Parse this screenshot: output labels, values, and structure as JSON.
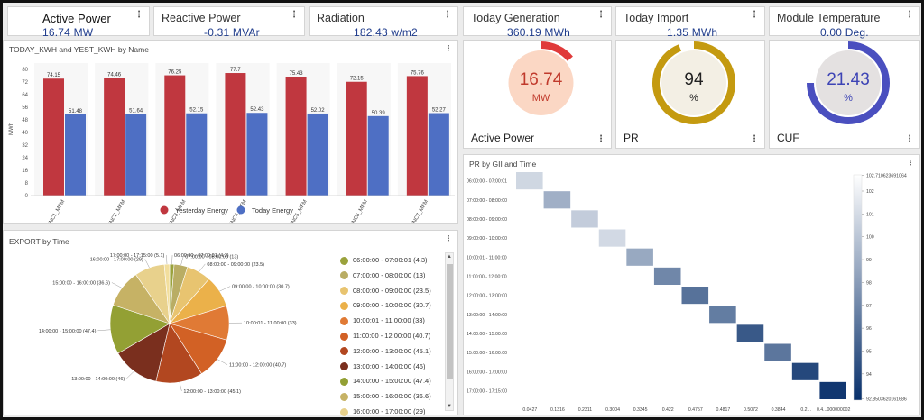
{
  "kpis": [
    {
      "title": "Active Power",
      "value": "16.74 MW",
      "selected": true
    },
    {
      "title": "Reactive Power",
      "value": "-0.31 MVAr"
    },
    {
      "title": "Radiation",
      "value": "182.43 w/m2"
    },
    {
      "title": "Today Generation",
      "value": "360.19 MWh"
    },
    {
      "title": "Today Import",
      "value": "1.35 MWh"
    },
    {
      "title": "Module Temperature",
      "value": "0.00 Deg."
    }
  ],
  "gauges": [
    {
      "title": "Active Power",
      "value": "16.74",
      "unit": "MW",
      "fraction": 0.14,
      "track_color": "#fbd7c4",
      "arc_color": "#e03a3a",
      "text_color": "#c0392b"
    },
    {
      "title": "PR",
      "value": "94",
      "unit": "%",
      "fraction": 0.94,
      "track_color": "#f3efe4",
      "arc_color": "#c49a10",
      "text_color": "#222222"
    },
    {
      "title": "CUF",
      "value": "21.43",
      "unit": "%",
      "fraction": 0.75,
      "track_color": "#e4e1e1",
      "arc_color": "#4a4fbf",
      "text_color": "#3d44b5"
    }
  ],
  "bar_card": {
    "title": "TODAY_KWH and YEST_KWH by Name"
  },
  "pie_card": {
    "title": "EXPORT by Time"
  },
  "heat_card": {
    "title": "PR by GII and Time"
  },
  "charts": {
    "bar": {
      "type": "bar",
      "categories": [
        "INC1_MFM",
        "INC2_MFM",
        "INC3_MFM",
        "INC4_MFM",
        "INC5_MFM",
        "INC6_MFM",
        "INC7_MFM"
      ],
      "series": [
        {
          "name": "Yesterday Energy",
          "color": "#c0373f",
          "values": [
            74.15,
            74.46,
            76.25,
            77.7,
            75.43,
            72.15,
            75.76
          ]
        },
        {
          "name": "Today Energy",
          "color": "#4e6fc4",
          "values": [
            51.48,
            51.64,
            52.15,
            52.43,
            52.02,
            50.39,
            52.27
          ]
        }
      ],
      "ylabel": "MWh",
      "yticks": [
        0,
        8,
        16,
        24,
        32,
        40,
        48,
        56,
        64,
        72,
        80
      ],
      "ylim": [
        0,
        84
      ],
      "legend_position": "bottom"
    },
    "pie": {
      "type": "pie",
      "slices": [
        {
          "label": "06:00:00 - 07:00:01",
          "value": 4.3,
          "color": "#9aa23c"
        },
        {
          "label": "07:00:00 - 08:00:00",
          "value": 13,
          "color": "#b9ad64"
        },
        {
          "label": "08:00:00 - 09:00:00",
          "value": 23.5,
          "color": "#e8c470"
        },
        {
          "label": "09:00:00 - 10:00:00",
          "value": 30.7,
          "color": "#ebb14a"
        },
        {
          "label": "10:00:01 - 11:00:00",
          "value": 33,
          "color": "#e07a35"
        },
        {
          "label": "11:00:00 - 12:00:00",
          "value": 40.7,
          "color": "#d26125"
        },
        {
          "label": "12:00:00 - 13:00:00",
          "value": 45.1,
          "color": "#b24720"
        },
        {
          "label": "13:00:00 - 14:00:00",
          "value": 46,
          "color": "#7a2f1e"
        },
        {
          "label": "14:00:00 - 15:00:00",
          "value": 47.4,
          "color": "#93a034"
        },
        {
          "label": "15:00:00 - 16:00:00",
          "value": 36.6,
          "color": "#c6b265"
        },
        {
          "label": "16:00:00 - 17:00:00",
          "value": 29,
          "color": "#e8d18c"
        },
        {
          "label": "17:00:00 - 17:15:00",
          "value": 5.1,
          "color": "#f2de9c"
        }
      ],
      "outer_labels": [
        "10:00:01 - 11:00:00 (33)",
        "09:00:00 - 10:00:00 (30.7)",
        "08:00:00 - 09:00:00 (23.5)",
        "07:00:00 - 08:00:00 (13)",
        "06:00:00 - 07:00:01 (4.3)",
        "17:00:00 - 17:15:00 (5.1)",
        "16:00:00 - 17:00:00 (29)",
        "15:00:00 - 16:00:00 (36.6)",
        "14:00:00 - 15:00:00 (47.4)",
        "13:00:00 - 14:00:00 (46)",
        "12:00:00 - 13:00:00 (45.1)",
        "11:00:00 - 12:00:00 (40.7)"
      ],
      "legend": [
        "06:00:00  -  07:00:01 (4.3)",
        "07:00:00  -  08:00:00 (13)",
        "08:00:00  -  09:00:00 (23.5)",
        "09:00:00  -  10:00:00 (30.7)",
        "10:00:01  -  11:00:00 (33)",
        "11:00:00  -  12:00:00 (40.7)",
        "12:00:00  -  13:00:00 (45.1)",
        "13:00:00  -  14:00:00 (46)",
        "14:00:00  -  15:00:00 (47.4)",
        "15:00:00  -  16:00:00 (36.6)",
        "16:00:00  -  17:00:00 (29)"
      ]
    },
    "heatmap": {
      "type": "heatmap",
      "rows": [
        "06:00:00 - 07:00:01",
        "07:00:00 - 08:00:00",
        "08:00:00 - 09:00:00",
        "09:00:00 - 10:00:00",
        "10:00:01 - 11:00:00",
        "11:00:00 - 12:00:00",
        "12:00:00 - 13:00:00",
        "13:00:00 - 14:00:00",
        "14:00:00 - 15:00:00",
        "15:00:00 - 16:00:00",
        "16:00:00 - 17:00:00",
        "17:00:00 - 17:15:00"
      ],
      "columns": [
        "0.0427",
        "0.1316",
        "0.2311",
        "0.3004",
        "0.3345",
        "0.422",
        "0.4757",
        "0.4817",
        "0.5072",
        "0.3844",
        "0.2...",
        "0.4...000000002"
      ],
      "values": [
        100.8,
        98.9,
        100.3,
        100.9,
        98.6,
        97.0,
        96.0,
        96.5,
        94.8,
        96.2,
        94.0,
        93.2
      ],
      "color_min": "#ffffff",
      "color_max": "#08306b",
      "colorbar_ticks": [
        {
          "value": 102.7,
          "label": "102.710623691064"
        },
        {
          "value": 102,
          "label": "102"
        },
        {
          "value": 101,
          "label": "101"
        },
        {
          "value": 100,
          "label": "100"
        },
        {
          "value": 99,
          "label": "99"
        },
        {
          "value": 98,
          "label": "98"
        },
        {
          "value": 97,
          "label": "97"
        },
        {
          "value": 96,
          "label": "96"
        },
        {
          "value": 95,
          "label": "95"
        },
        {
          "value": 94,
          "label": "94"
        },
        {
          "value": 92.9,
          "label": "92.8503620161686"
        }
      ],
      "range": [
        92.85,
        102.71
      ]
    }
  }
}
